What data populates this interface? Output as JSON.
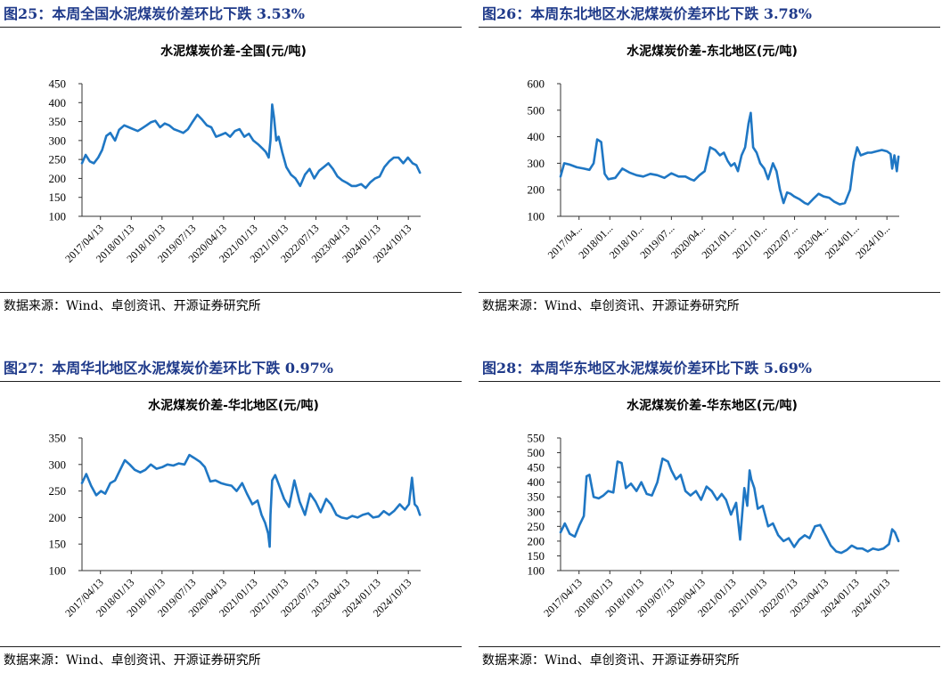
{
  "figures": [
    {
      "caption": "图25：本周全国水泥煤炭价差环比下跌 3.53%",
      "source": "数据来源：Wind、卓创资讯、开源证券研究所",
      "chart_data": {
        "type": "line",
        "title": "水泥煤炭价差-全国(元/吨)",
        "ylim": [
          100,
          450
        ],
        "yticks": [
          100,
          150,
          200,
          250,
          300,
          350,
          400,
          450
        ],
        "xlim": [
          "2017/04/13",
          "2025/05/01"
        ],
        "xticks": [
          "2017/04/13",
          "2018/01/13",
          "2018/10/13",
          "2019/07/13",
          "2020/04/13",
          "2021/01/13",
          "2021/10/13",
          "2022/07/13",
          "2023/04/13",
          "2024/01/13",
          "2024/10/13"
        ],
        "color": "#1f77c4",
        "series": [
          {
            "x": [
              "2017-04-13",
              "2017-05-15",
              "2017-06-20",
              "2017-07-25",
              "2017-09-01",
              "2017-10-05",
              "2017-11-10",
              "2017-12-15",
              "2018-01-25",
              "2018-03-01",
              "2018-04-15",
              "2018-05-25",
              "2018-07-01",
              "2018-08-10",
              "2018-09-20",
              "2018-10-25",
              "2018-12-01",
              "2019-01-10",
              "2019-02-20",
              "2019-04-01",
              "2019-05-10",
              "2019-06-20",
              "2019-08-01",
              "2019-09-10",
              "2019-10-20",
              "2019-12-01",
              "2020-01-10",
              "2020-02-20",
              "2020-04-01",
              "2020-05-10",
              "2020-06-20",
              "2020-08-01",
              "2020-09-10",
              "2020-10-20",
              "2020-12-01",
              "2021-01-10",
              "2021-02-20",
              "2021-04-01",
              "2021-05-10",
              "2021-06-20",
              "2021-07-25",
              "2021-08-25",
              "2021-09-20",
              "2021-10-05",
              "2021-10-20",
              "2021-11-05",
              "2021-11-25",
              "2021-12-15",
              "2022-01-15",
              "2022-02-20",
              "2022-04-01",
              "2022-05-10",
              "2022-06-20",
              "2022-08-01",
              "2022-09-10",
              "2022-10-20",
              "2022-12-01",
              "2023-01-10",
              "2023-02-20",
              "2023-04-01",
              "2023-05-10",
              "2023-06-20",
              "2023-08-01",
              "2023-09-10",
              "2023-10-20",
              "2023-12-01",
              "2024-01-10",
              "2024-02-20",
              "2024-04-01",
              "2024-05-10",
              "2024-06-20",
              "2024-08-01",
              "2024-09-10",
              "2024-10-20",
              "2024-12-01",
              "2025-01-10",
              "2025-02-20",
              "2025-03-25",
              "2025-04-25"
            ],
            "values": [
              240,
              262,
              245,
              240,
              255,
              275,
              312,
              320,
              300,
              328,
              340,
              335,
              330,
              325,
              333,
              340,
              348,
              352,
              335,
              345,
              340,
              330,
              325,
              320,
              330,
              350,
              368,
              355,
              340,
              335,
              310,
              315,
              320,
              310,
              325,
              330,
              310,
              318,
              300,
              290,
              280,
              270,
              255,
              300,
              395,
              360,
              300,
              310,
              270,
              230,
              210,
              200,
              180,
              210,
              225,
              200,
              220,
              230,
              240,
              225,
              205,
              195,
              188,
              180,
              180,
              185,
              175,
              190,
              200,
              205,
              230,
              245,
              255,
              255,
              240,
              255,
              240,
              235,
              215
            ]
          }
        ]
      }
    },
    {
      "caption": "图26：本周东北地区水泥煤炭价差环比下跌 3.78%",
      "source": "数据来源：Wind、卓创资讯、开源证券研究所",
      "chart_data": {
        "type": "line",
        "title": "水泥煤炭价差-东北地区(元/吨)",
        "ylim": [
          100,
          600
        ],
        "yticks": [
          100,
          200,
          300,
          400,
          500,
          600
        ],
        "xlim": [
          "2017/04/13",
          "2025/05/01"
        ],
        "xticks": [
          "2017/04...",
          "2018/01...",
          "2018/10...",
          "2019/07...",
          "2020/04...",
          "2021/01...",
          "2021/10...",
          "2022/07...",
          "2023/04...",
          "2024/01...",
          "2024/10..."
        ],
        "color": "#1f77c4",
        "series": [
          {
            "x": [
              "2017-04-13",
              "2017-05-15",
              "2017-07-01",
              "2017-09-01",
              "2017-11-01",
              "2017-12-20",
              "2018-01-25",
              "2018-02-25",
              "2018-04-01",
              "2018-05-01",
              "2018-06-01",
              "2018-08-01",
              "2018-10-01",
              "2018-12-01",
              "2019-02-01",
              "2019-04-01",
              "2019-06-01",
              "2019-08-01",
              "2019-10-01",
              "2019-12-01",
              "2020-02-01",
              "2020-04-01",
              "2020-05-15",
              "2020-06-15",
              "2020-08-01",
              "2020-09-15",
              "2020-11-01",
              "2020-12-15",
              "2021-01-25",
              "2021-03-01",
              "2021-04-01",
              "2021-05-01",
              "2021-06-01",
              "2021-07-01",
              "2021-08-01",
              "2021-09-01",
              "2021-10-01",
              "2021-10-20",
              "2021-11-10",
              "2021-12-10",
              "2022-01-10",
              "2022-02-15",
              "2022-03-20",
              "2022-05-01",
              "2022-06-01",
              "2022-07-01",
              "2022-08-01",
              "2022-09-01",
              "2022-10-01",
              "2022-11-01",
              "2022-12-15",
              "2023-02-01",
              "2023-03-01",
              "2023-04-15",
              "2023-06-01",
              "2023-07-15",
              "2023-09-01",
              "2023-10-15",
              "2023-12-01",
              "2024-01-15",
              "2024-03-01",
              "2024-04-01",
              "2024-05-01",
              "2024-06-01",
              "2024-07-01",
              "2024-08-01",
              "2024-09-01",
              "2024-10-15",
              "2024-12-01",
              "2025-01-15",
              "2025-02-15",
              "2025-03-01",
              "2025-03-20",
              "2025-04-10",
              "2025-04-25"
            ],
            "values": [
              250,
              300,
              295,
              285,
              280,
              275,
              300,
              390,
              380,
              260,
              240,
              245,
              280,
              265,
              255,
              250,
              260,
              255,
              245,
              262,
              250,
              250,
              240,
              235,
              255,
              270,
              360,
              350,
              330,
              340,
              310,
              290,
              300,
              270,
              330,
              360,
              450,
              490,
              360,
              340,
              300,
              280,
              240,
              300,
              270,
              200,
              150,
              190,
              185,
              175,
              165,
              150,
              145,
              165,
              185,
              175,
              170,
              155,
              145,
              150,
              200,
              305,
              360,
              330,
              335,
              340,
              340,
              345,
              350,
              345,
              335,
              280,
              330,
              270,
              325
            ]
          }
        ]
      }
    },
    {
      "caption": "图27：本周华北地区水泥煤炭价差环比下跌 0.97%",
      "source": "数据来源：Wind、卓创资讯、开源证券研究所",
      "chart_data": {
        "type": "line",
        "title": "水泥煤炭价差-华北地区(元/吨)",
        "ylim": [
          100,
          350
        ],
        "yticks": [
          100,
          150,
          200,
          250,
          300,
          350
        ],
        "xlim": [
          "2017/04/13",
          "2025/05/01"
        ],
        "xticks": [
          "2017/04/13",
          "2018/01/13",
          "2018/10/13",
          "2019/07/13",
          "2020/04/13",
          "2021/01/13",
          "2021/10/13",
          "2022/07/13",
          "2023/04/13",
          "2024/01/13",
          "2024/10/13"
        ],
        "color": "#1f77c4",
        "series": [
          {
            "x": [
              "2017-04-13",
              "2017-05-20",
              "2017-07-01",
              "2017-08-15",
              "2017-09-25",
              "2017-11-01",
              "2017-12-15",
              "2018-01-25",
              "2018-03-10",
              "2018-04-20",
              "2018-06-01",
              "2018-07-15",
              "2018-09-01",
              "2018-10-15",
              "2018-12-01",
              "2019-01-20",
              "2019-03-10",
              "2019-04-25",
              "2019-06-15",
              "2019-08-01",
              "2019-09-20",
              "2019-11-01",
              "2019-12-15",
              "2020-02-01",
              "2020-03-15",
              "2020-05-01",
              "2020-06-15",
              "2020-08-01",
              "2020-09-15",
              "2020-11-01",
              "2020-12-15",
              "2021-02-01",
              "2021-03-15",
              "2021-05-01",
              "2021-06-15",
              "2021-07-20",
              "2021-08-20",
              "2021-09-15",
              "2021-09-28",
              "2021-10-05",
              "2021-10-20",
              "2021-11-15",
              "2021-12-20",
              "2022-02-01",
              "2022-03-15",
              "2022-05-01",
              "2022-06-15",
              "2022-08-01",
              "2022-09-15",
              "2022-11-01",
              "2022-12-15",
              "2023-02-01",
              "2023-03-15",
              "2023-05-01",
              "2023-06-15",
              "2023-08-01",
              "2023-09-15",
              "2023-11-01",
              "2023-12-15",
              "2024-02-01",
              "2024-03-15",
              "2024-05-01",
              "2024-06-15",
              "2024-08-01",
              "2024-09-15",
              "2024-11-01",
              "2024-12-15",
              "2025-01-20",
              "2025-02-15",
              "2025-03-10",
              "2025-04-01",
              "2025-04-25"
            ],
            "values": [
              265,
              282,
              260,
              242,
              250,
              245,
              265,
              270,
              290,
              308,
              300,
              290,
              285,
              290,
              300,
              292,
              295,
              300,
              298,
              302,
              300,
              318,
              312,
              305,
              295,
              268,
              270,
              265,
              262,
              260,
              250,
              265,
              245,
              225,
              232,
              205,
              190,
              170,
              145,
              205,
              270,
              280,
              260,
              235,
              220,
              270,
              230,
              205,
              245,
              230,
              210,
              235,
              225,
              205,
              200,
              198,
              203,
              200,
              205,
              208,
              200,
              202,
              212,
              205,
              213,
              225,
              215,
              225,
              275,
              225,
              220,
              205
            ]
          }
        ]
      }
    },
    {
      "caption": "图28：本周华东地区水泥煤炭价差环比下跌 5.69%",
      "source": "数据来源：Wind、卓创资讯、开源证券研究所",
      "chart_data": {
        "type": "line",
        "title": "水泥煤炭价差-华东地区(元/吨)",
        "ylim": [
          100,
          550
        ],
        "yticks": [
          100,
          150,
          200,
          250,
          300,
          350,
          400,
          450,
          500,
          550
        ],
        "xlim": [
          "2017/04/13",
          "2025/05/01"
        ],
        "xticks": [
          "2017/04/13",
          "2018/01/13",
          "2018/10/13",
          "2019/07/13",
          "2020/04/13",
          "2021/01/13",
          "2021/10/13",
          "2022/07/13",
          "2023/04/13",
          "2024/01/13",
          "2024/10/13"
        ],
        "color": "#1f77c4",
        "series": [
          {
            "x": [
              "2017-04-13",
              "2017-05-20",
              "2017-07-01",
              "2017-08-15",
              "2017-09-25",
              "2017-11-01",
              "2017-11-25",
              "2017-12-20",
              "2018-01-25",
              "2018-03-10",
              "2018-04-20",
              "2018-06-01",
              "2018-07-15",
              "2018-08-20",
              "2018-09-25",
              "2018-11-01",
              "2018-12-15",
              "2019-02-01",
              "2019-03-15",
              "2019-05-01",
              "2019-06-15",
              "2019-08-01",
              "2019-09-15",
              "2019-11-01",
              "2019-12-01",
              "2020-01-10",
              "2020-02-20",
              "2020-04-01",
              "2020-05-15",
              "2020-07-01",
              "2020-08-15",
              "2020-10-01",
              "2020-11-15",
              "2021-01-01",
              "2021-02-10",
              "2021-03-20",
              "2021-05-01",
              "2021-06-15",
              "2021-07-20",
              "2021-08-25",
              "2021-09-20",
              "2021-10-10",
              "2021-10-25",
              "2021-11-20",
              "2021-12-20",
              "2022-02-01",
              "2022-03-20",
              "2022-05-01",
              "2022-06-15",
              "2022-08-01",
              "2022-09-15",
              "2022-11-01",
              "2022-12-15",
              "2023-02-01",
              "2023-03-15",
              "2023-05-01",
              "2023-06-15",
              "2023-08-01",
              "2023-09-15",
              "2023-11-01",
              "2023-12-15",
              "2024-02-01",
              "2024-03-15",
              "2024-05-01",
              "2024-06-15",
              "2024-08-01",
              "2024-09-15",
              "2024-11-01",
              "2024-12-15",
              "2025-02-01",
              "2025-03-01",
              "2025-03-25",
              "2025-04-25"
            ],
            "values": [
              230,
              260,
              225,
              215,
              255,
              285,
              420,
              425,
              350,
              345,
              355,
              370,
              365,
              470,
              465,
              380,
              395,
              370,
              400,
              360,
              355,
              400,
              480,
              470,
              440,
              410,
              425,
              370,
              355,
              370,
              340,
              385,
              370,
              340,
              360,
              340,
              290,
              330,
              205,
              380,
              320,
              440,
              410,
              380,
              310,
              320,
              250,
              260,
              220,
              200,
              210,
              180,
              205,
              220,
              210,
              250,
              255,
              220,
              185,
              165,
              160,
              170,
              185,
              175,
              175,
              165,
              175,
              170,
              175,
              190,
              240,
              230,
              200
            ]
          }
        ]
      }
    }
  ]
}
